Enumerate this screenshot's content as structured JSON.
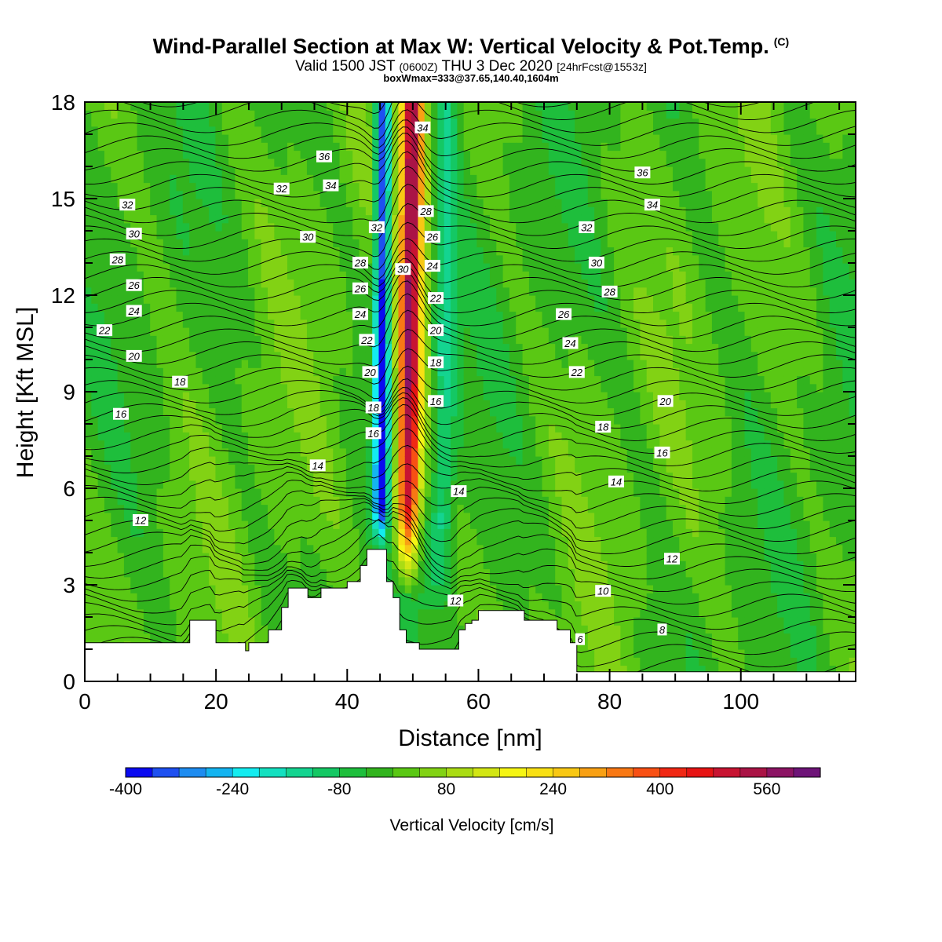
{
  "header": {
    "title": "Wind-Parallel Section at Max W: Vertical Velocity & Pot.Temp.",
    "title_badge": "(C)",
    "sub_valid": "Valid 1500 JST",
    "sub_utc": "(0600Z)",
    "sub_date": "THU 3 Dec 2020",
    "sub_fcst": "[24hrFcst@1553z]",
    "sub_box": "boxWmax=333@37.65,140.40,1604m"
  },
  "chart_data": {
    "type": "heatmap",
    "xlabel": "Distance [nm]",
    "ylabel": "Height [Kft MSL]",
    "xlim": [
      0,
      117.5
    ],
    "ylim": [
      0,
      18
    ],
    "x_ticks": [
      0,
      20,
      40,
      60,
      80,
      100
    ],
    "x_tick_labels": [
      "0",
      "20",
      "40",
      "60",
      "80",
      "100"
    ],
    "y_ticks": [
      0,
      3,
      6,
      9,
      12,
      15,
      18
    ],
    "y_tick_labels": [
      "0",
      "3",
      "6",
      "9",
      "12",
      "15",
      "18"
    ],
    "colorbar": {
      "label": "Vertical Velocity [cm/s]",
      "min": -400,
      "max": 640,
      "step": 40,
      "tick_values": [
        -400,
        -240,
        -80,
        80,
        240,
        400,
        560
      ],
      "tick_labels": [
        "-400",
        "-240",
        "-80",
        "80",
        "240",
        "400",
        "560"
      ],
      "colors": [
        "#0a0af0",
        "#1e50f0",
        "#1e8cf0",
        "#14b4f0",
        "#14ecf0",
        "#14e0c0",
        "#14d490",
        "#14c864",
        "#1ebe3c",
        "#32b41e",
        "#5ac814",
        "#82d214",
        "#aadc14",
        "#d2e614",
        "#f5f514",
        "#f8e014",
        "#f8c814",
        "#f8a014",
        "#f87814",
        "#f85014",
        "#f02814",
        "#e61414",
        "#c81432",
        "#aa1446",
        "#8c1464",
        "#6e1478"
      ]
    },
    "terrain_kft": [
      [
        0,
        1.2
      ],
      [
        15,
        1.2
      ],
      [
        16,
        1.9
      ],
      [
        19,
        1.9
      ],
      [
        20,
        1.2
      ],
      [
        24,
        1.2
      ],
      [
        24.5,
        0.95
      ],
      [
        25,
        1.2
      ],
      [
        28,
        1.6
      ],
      [
        30,
        2.3
      ],
      [
        31,
        2.9
      ],
      [
        33,
        2.9
      ],
      [
        34,
        2.6
      ],
      [
        35,
        2.6
      ],
      [
        36,
        2.9
      ],
      [
        38,
        2.9
      ],
      [
        40,
        3.1
      ],
      [
        42,
        3.6
      ],
      [
        43,
        4.1
      ],
      [
        45,
        4.1
      ],
      [
        46,
        3.1
      ],
      [
        47,
        2.6
      ],
      [
        48,
        1.6
      ],
      [
        49,
        1.2
      ],
      [
        51,
        1.0
      ],
      [
        56,
        1.0
      ],
      [
        57,
        1.6
      ],
      [
        58,
        1.8
      ],
      [
        59,
        1.9
      ],
      [
        60,
        2.2
      ],
      [
        66,
        2.2
      ],
      [
        67,
        1.9
      ],
      [
        70,
        1.9
      ],
      [
        72,
        1.6
      ],
      [
        74,
        1.2
      ],
      [
        75,
        0.3
      ],
      [
        117.5,
        0.3
      ]
    ],
    "updraft_core": {
      "x_bottom": 49,
      "x_top": 50,
      "y_bottom": 2.6,
      "peak": 560
    },
    "downdraft_core": {
      "x_bottom": 45,
      "x_top": 45.5,
      "y_bottom": 4.0,
      "peak": -400
    },
    "theta_contour_labels": [
      {
        "text": "36",
        "x": 36.5,
        "y": 16.3
      },
      {
        "text": "34",
        "x": 37.5,
        "y": 15.4
      },
      {
        "text": "32",
        "x": 30,
        "y": 15.3
      },
      {
        "text": "30",
        "x": 34,
        "y": 13.8
      },
      {
        "text": "32",
        "x": 6.5,
        "y": 14.8
      },
      {
        "text": "30",
        "x": 7.5,
        "y": 13.9
      },
      {
        "text": "28",
        "x": 5,
        "y": 13.1
      },
      {
        "text": "26",
        "x": 7.5,
        "y": 12.3
      },
      {
        "text": "24",
        "x": 7.5,
        "y": 11.5
      },
      {
        "text": "22",
        "x": 3,
        "y": 10.9
      },
      {
        "text": "20",
        "x": 7.5,
        "y": 10.1
      },
      {
        "text": "18",
        "x": 14.5,
        "y": 9.3
      },
      {
        "text": "16",
        "x": 5.5,
        "y": 8.3
      },
      {
        "text": "14",
        "x": 35.5,
        "y": 6.7
      },
      {
        "text": "12",
        "x": 8.5,
        "y": 5.0
      },
      {
        "text": "34",
        "x": 51.5,
        "y": 17.2
      },
      {
        "text": "32",
        "x": 44.5,
        "y": 14.1
      },
      {
        "text": "30",
        "x": 48.5,
        "y": 12.8
      },
      {
        "text": "28",
        "x": 42,
        "y": 13.0
      },
      {
        "text": "26",
        "x": 42,
        "y": 12.2
      },
      {
        "text": "24",
        "x": 42,
        "y": 11.4
      },
      {
        "text": "22",
        "x": 43,
        "y": 10.6
      },
      {
        "text": "20",
        "x": 43.5,
        "y": 9.6
      },
      {
        "text": "18",
        "x": 44,
        "y": 8.5
      },
      {
        "text": "16",
        "x": 44,
        "y": 7.7
      },
      {
        "text": "28",
        "x": 52,
        "y": 14.6
      },
      {
        "text": "26",
        "x": 53,
        "y": 13.8
      },
      {
        "text": "24",
        "x": 53,
        "y": 12.9
      },
      {
        "text": "22",
        "x": 53.5,
        "y": 11.9
      },
      {
        "text": "20",
        "x": 53.5,
        "y": 10.9
      },
      {
        "text": "18",
        "x": 53.5,
        "y": 9.9
      },
      {
        "text": "16",
        "x": 53.5,
        "y": 8.7
      },
      {
        "text": "14",
        "x": 57,
        "y": 5.9
      },
      {
        "text": "12",
        "x": 56.5,
        "y": 2.5
      },
      {
        "text": "36",
        "x": 85,
        "y": 15.8
      },
      {
        "text": "34",
        "x": 86.5,
        "y": 14.8
      },
      {
        "text": "32",
        "x": 76.5,
        "y": 14.1
      },
      {
        "text": "30",
        "x": 78,
        "y": 13.0
      },
      {
        "text": "28",
        "x": 80,
        "y": 12.1
      },
      {
        "text": "26",
        "x": 73,
        "y": 11.4
      },
      {
        "text": "24",
        "x": 74,
        "y": 10.5
      },
      {
        "text": "22",
        "x": 75,
        "y": 9.6
      },
      {
        "text": "20",
        "x": 88.5,
        "y": 8.7
      },
      {
        "text": "18",
        "x": 79,
        "y": 7.9
      },
      {
        "text": "16",
        "x": 88,
        "y": 7.1
      },
      {
        "text": "14",
        "x": 81,
        "y": 6.2
      },
      {
        "text": "12",
        "x": 89.5,
        "y": 3.8
      },
      {
        "text": "10",
        "x": 79,
        "y": 2.8
      },
      {
        "text": "8",
        "x": 88,
        "y": 1.6
      },
      {
        "text": "6",
        "x": 75.5,
        "y": 1.3
      }
    ]
  }
}
